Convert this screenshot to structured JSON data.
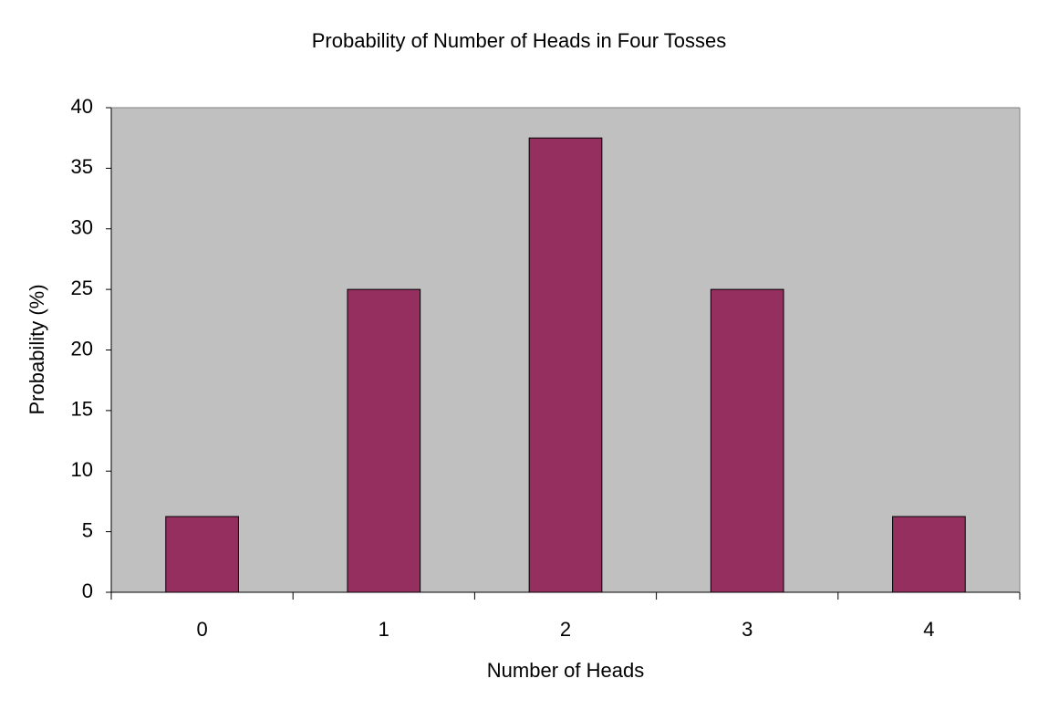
{
  "chart_data": {
    "type": "bar",
    "title": "Probability of Number of Heads in Four Tosses",
    "x_label": "Number of Heads",
    "y_label": "Probability (%)",
    "categories": [
      "0",
      "1",
      "2",
      "3",
      "4"
    ],
    "values": [
      6.25,
      25,
      37.5,
      25,
      6.25
    ],
    "color": "#952f5f",
    "ylim": [
      0,
      40
    ],
    "yticks": [
      0,
      5,
      10,
      15,
      20,
      25,
      30,
      35,
      40
    ],
    "grid": false,
    "plot_background": "#c0c0c0"
  }
}
